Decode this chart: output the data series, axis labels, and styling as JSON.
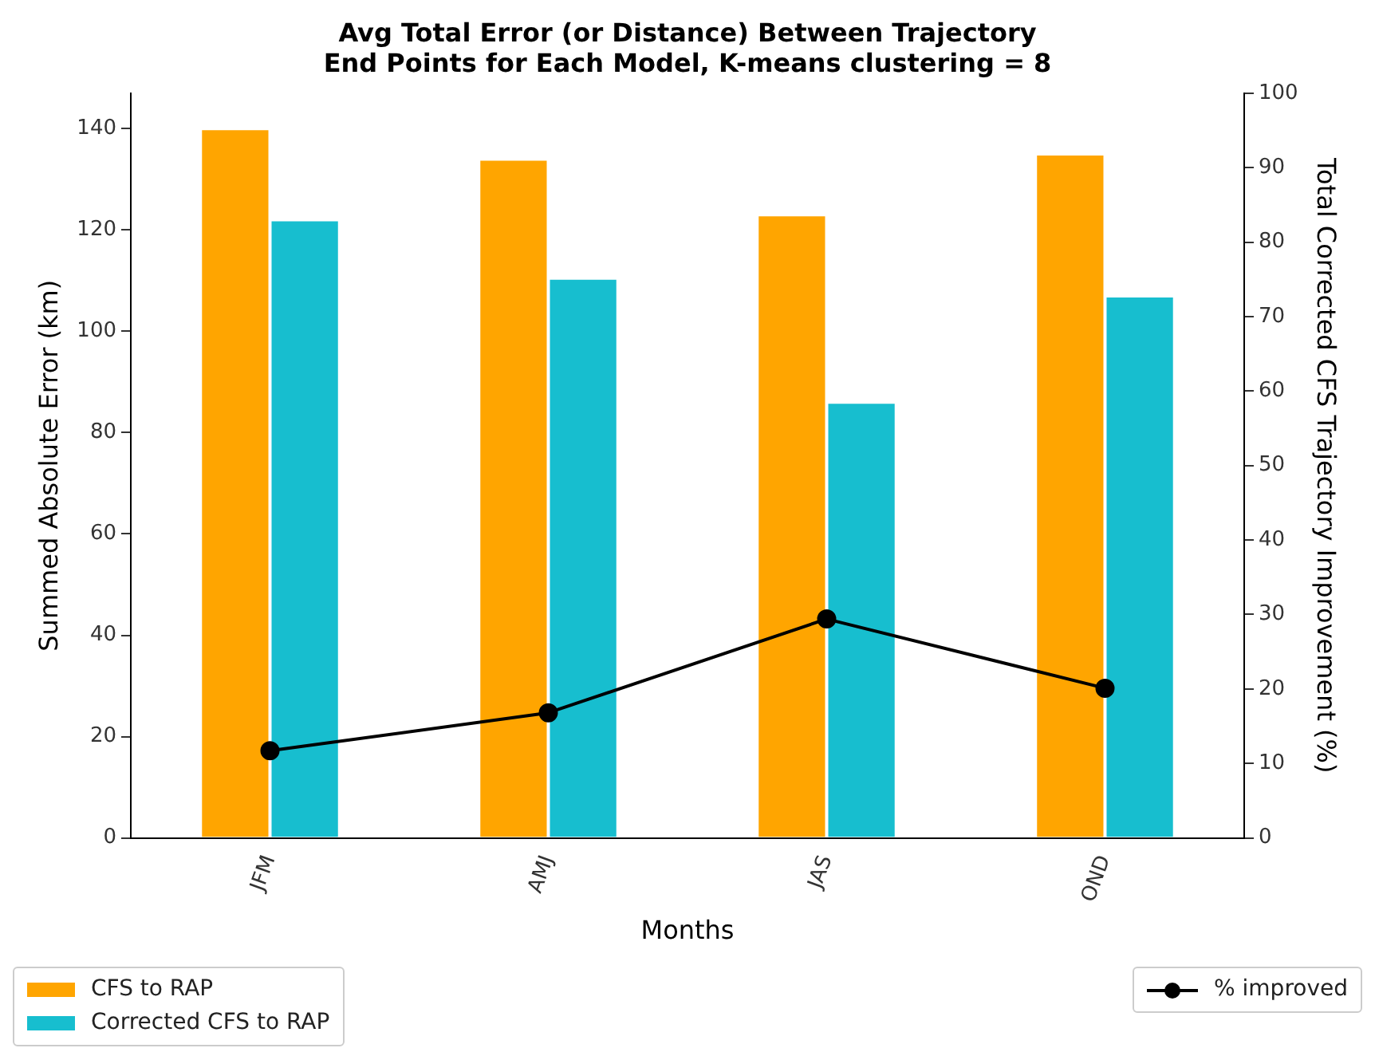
{
  "chart_data": {
    "type": "bar",
    "title": "Avg Total Error (or Distance) Between Trajectory End Points for Each Model, K-means clustering = 8",
    "xlabel": "Months",
    "ylabel": "Summed Absolute Error (km)",
    "y2label": "Total Corrected CFS Trajectory Improvement (%)",
    "categories": [
      "JFM",
      "AMJ",
      "JAS",
      "OND"
    ],
    "series": [
      {
        "name": "CFS to RAP",
        "color": "#ffa500",
        "values": [
          140,
          134,
          123,
          135
        ]
      },
      {
        "name": "Corrected CFS to RAP",
        "color": "#17becf",
        "values": [
          122,
          110.5,
          86,
          107
        ]
      },
      {
        "name": "% improved",
        "color": "#000000",
        "type": "line",
        "axis": "y2",
        "values": [
          11.7,
          16.8,
          29.4,
          20.1
        ]
      }
    ],
    "ylim": [
      0,
      147
    ],
    "yticks": [
      0,
      20,
      40,
      60,
      80,
      100,
      120,
      140
    ],
    "y2lim": [
      0,
      100
    ],
    "y2ticks": [
      0,
      10,
      20,
      30,
      40,
      50,
      60,
      70,
      80,
      90,
      100
    ],
    "grid": false,
    "legend": "bottom",
    "marker": "circle",
    "line_style": "solid"
  }
}
